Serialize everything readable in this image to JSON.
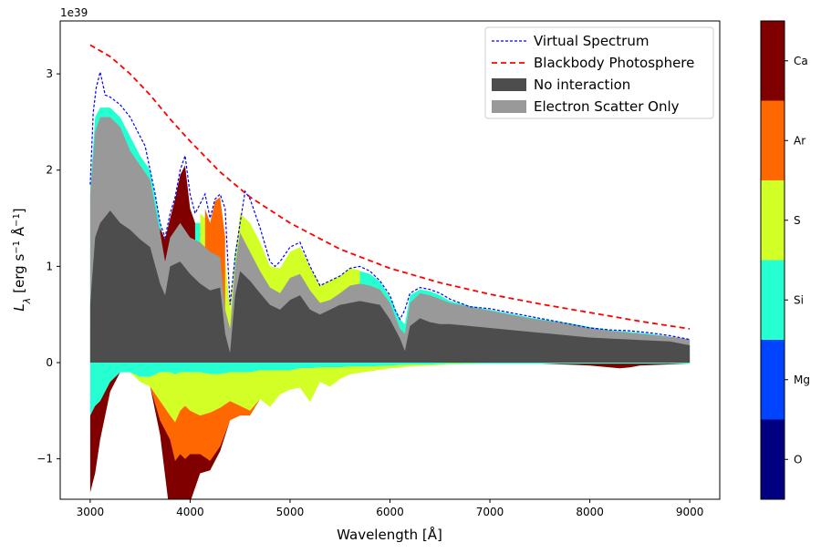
{
  "chart_data": {
    "type": "area",
    "xlabel": "Wavelength [Å]",
    "ylabel_main": "L",
    "ylabel_sub": "λ",
    "ylabel_units": "[erg s",
    "ylabel_units2": " Å",
    "ylabel_close": "]",
    "ylabel_exp": "−1",
    "y_multiplier": "1e39",
    "xlim": [
      2700,
      9300
    ],
    "ylim": [
      -1.42,
      3.55
    ],
    "xticks": [
      3000,
      4000,
      5000,
      6000,
      7000,
      8000,
      9000
    ],
    "yticks": [
      -1,
      0,
      1,
      2,
      3
    ],
    "ytick_labels": [
      "−1",
      "0",
      "1",
      "2",
      "3"
    ],
    "legend": [
      {
        "label": "Virtual Spectrum",
        "style": "dashed-line",
        "color": "#0000ff"
      },
      {
        "label": "Blackbody Photosphere",
        "style": "dashed-line",
        "color": "#ff0000"
      },
      {
        "label": "No interaction",
        "style": "patch",
        "color": "#4d4d4d"
      },
      {
        "label": "Electron Scatter Only",
        "style": "patch",
        "color": "#999999"
      }
    ],
    "legend_position": "top-right",
    "blackbody": {
      "x": [
        3000,
        3200,
        3400,
        3600,
        3800,
        4000,
        4300,
        4600,
        5000,
        5500,
        6000,
        6500,
        7000,
        7500,
        8000,
        8500,
        9000
      ],
      "y": [
        3.3,
        3.18,
        3.0,
        2.78,
        2.53,
        2.3,
        1.98,
        1.72,
        1.45,
        1.18,
        0.98,
        0.83,
        0.71,
        0.61,
        0.52,
        0.43,
        0.35
      ]
    },
    "virtual_spectrum": {
      "x": [
        3000,
        3030,
        3060,
        3100,
        3150,
        3200,
        3300,
        3400,
        3450,
        3500,
        3550,
        3600,
        3650,
        3700,
        3750,
        3800,
        3850,
        3900,
        3950,
        4000,
        4050,
        4100,
        4150,
        4200,
        4250,
        4300,
        4350,
        4400,
        4450,
        4500,
        4550,
        4600,
        4700,
        4800,
        4850,
        4900,
        5000,
        5100,
        5200,
        5300,
        5400,
        5500,
        5600,
        5700,
        5800,
        5900,
        6000,
        6050,
        6100,
        6150,
        6200,
        6300,
        6400,
        6500,
        6600,
        6700,
        6800,
        7000,
        7200,
        7400,
        7600,
        7800,
        8000,
        8200,
        8400,
        8600,
        8800,
        9000
      ],
      "y": [
        1.85,
        2.6,
        2.85,
        3.02,
        2.78,
        2.76,
        2.68,
        2.55,
        2.45,
        2.35,
        2.25,
        2.0,
        1.75,
        1.45,
        1.3,
        1.55,
        1.72,
        2.0,
        2.15,
        1.75,
        1.55,
        1.65,
        1.75,
        1.5,
        1.7,
        1.75,
        1.6,
        0.6,
        1.1,
        1.45,
        1.78,
        1.7,
        1.4,
        1.05,
        1.0,
        1.05,
        1.2,
        1.25,
        1.0,
        0.8,
        0.85,
        0.9,
        0.98,
        1.0,
        0.95,
        0.85,
        0.7,
        0.55,
        0.45,
        0.55,
        0.72,
        0.78,
        0.76,
        0.72,
        0.66,
        0.62,
        0.58,
        0.56,
        0.52,
        0.48,
        0.44,
        0.4,
        0.36,
        0.34,
        0.33,
        0.31,
        0.28,
        0.24
      ]
    },
    "components": [
      {
        "name": "No interaction",
        "color": "#4d4d4d",
        "x": [
          3000,
          3050,
          3100,
          3200,
          3300,
          3400,
          3500,
          3600,
          3700,
          3750,
          3800,
          3900,
          4000,
          4100,
          4200,
          4300,
          4350,
          4400,
          4450,
          4500,
          4600,
          4700,
          4800,
          4900,
          5000,
          5100,
          5200,
          5300,
          5400,
          5500,
          5600,
          5700,
          5800,
          5900,
          6000,
          6100,
          6150,
          6200,
          6300,
          6400,
          6500,
          6600,
          6800,
          7000,
          7200,
          7400,
          7600,
          7800,
          8000,
          8200,
          8400,
          8600,
          8800,
          9000
        ],
        "y": [
          0.6,
          1.3,
          1.45,
          1.58,
          1.45,
          1.38,
          1.28,
          1.2,
          0.82,
          0.7,
          1.0,
          1.05,
          0.92,
          0.82,
          0.75,
          0.78,
          0.3,
          0.1,
          0.7,
          0.95,
          0.85,
          0.72,
          0.6,
          0.55,
          0.65,
          0.7,
          0.55,
          0.5,
          0.55,
          0.6,
          0.62,
          0.64,
          0.62,
          0.6,
          0.45,
          0.25,
          0.12,
          0.38,
          0.46,
          0.42,
          0.4,
          0.4,
          0.38,
          0.36,
          0.34,
          0.32,
          0.3,
          0.28,
          0.26,
          0.25,
          0.24,
          0.23,
          0.22,
          0.18
        ]
      },
      {
        "name": "Electron Scatter Only",
        "color": "#999999",
        "x": [
          3000,
          3050,
          3100,
          3200,
          3300,
          3400,
          3500,
          3600,
          3700,
          3750,
          3800,
          3900,
          4000,
          4100,
          4200,
          4300,
          4350,
          4400,
          4450,
          4500,
          4600,
          4700,
          4800,
          4900,
          5000,
          5100,
          5200,
          5300,
          5400,
          5500,
          5600,
          5700,
          5800,
          5900,
          6000,
          6100,
          6150,
          6200,
          6300,
          6400,
          6500,
          6600,
          6800,
          7000,
          7200,
          7400,
          7600,
          7800,
          8000,
          8200,
          8400,
          8600,
          8800,
          9000
        ],
        "y": [
          1.75,
          2.4,
          2.55,
          2.55,
          2.45,
          2.2,
          2.05,
          1.9,
          1.35,
          1.05,
          1.3,
          1.45,
          1.3,
          1.25,
          1.15,
          1.1,
          0.55,
          0.35,
          1.0,
          1.35,
          1.15,
          0.95,
          0.78,
          0.72,
          0.88,
          0.92,
          0.75,
          0.62,
          0.65,
          0.72,
          0.8,
          0.82,
          0.8,
          0.76,
          0.62,
          0.35,
          0.3,
          0.62,
          0.72,
          0.7,
          0.66,
          0.62,
          0.58,
          0.54,
          0.5,
          0.46,
          0.43,
          0.4,
          0.36,
          0.33,
          0.31,
          0.29,
          0.27,
          0.24
        ]
      },
      {
        "name": "Si",
        "color": "#26ffd1",
        "x": [
          3000,
          3050,
          3100,
          3200,
          3300,
          3400,
          3500,
          3600,
          3700,
          3750,
          3800,
          3900,
          4000,
          4100,
          4200,
          4300,
          4350,
          4400,
          4450,
          4500,
          4600,
          4700,
          4800,
          4900,
          5000,
          5100,
          5200,
          5300,
          5400,
          5500,
          5600,
          5700,
          5800,
          5900,
          6000,
          6100,
          6150,
          6200,
          6300,
          6400,
          6500,
          6600,
          6800,
          7000,
          7200,
          7400,
          7600,
          7800,
          8000,
          8200,
          8400,
          8600,
          8800,
          9000
        ],
        "y": [
          1.8,
          2.55,
          2.65,
          2.65,
          2.55,
          2.35,
          2.15,
          2.0,
          1.45,
          1.15,
          1.4,
          1.6,
          1.45,
          1.45,
          1.3,
          1.3,
          0.7,
          0.5,
          1.15,
          1.45,
          1.3,
          1.1,
          0.95,
          0.9,
          1.05,
          1.1,
          0.92,
          0.72,
          0.7,
          0.76,
          0.92,
          0.95,
          0.92,
          0.84,
          0.68,
          0.45,
          0.4,
          0.7,
          0.76,
          0.74,
          0.7,
          0.64,
          0.59,
          0.55,
          0.51,
          0.47,
          0.44,
          0.41,
          0.37,
          0.34,
          0.32,
          0.3,
          0.27,
          0.24
        ]
      },
      {
        "name": "S",
        "color": "#d1ff26",
        "x": [
          4100,
          4200,
          4300,
          4400,
          4500,
          4600,
          4700,
          4800,
          4900,
          5000,
          5100,
          5200,
          5300,
          5400,
          5500,
          5600,
          5700
        ],
        "y": [
          1.55,
          1.45,
          1.6,
          0.55,
          1.55,
          1.45,
          1.25,
          1.0,
          0.98,
          1.15,
          1.2,
          1.0,
          0.8,
          0.85,
          0.9,
          0.98,
          0.96
        ]
      },
      {
        "name": "Ar",
        "color": "#ff6800",
        "x": [
          4150,
          4200,
          4250,
          4300,
          4350
        ],
        "y": [
          1.6,
          1.45,
          1.68,
          1.72,
          1.3
        ]
      },
      {
        "name": "Ca",
        "color": "#800000",
        "x": [
          3700,
          3750,
          3800,
          3850,
          3900,
          3950,
          4000,
          4050
        ],
        "y": [
          1.4,
          1.28,
          1.5,
          1.7,
          1.95,
          2.05,
          1.6,
          1.45
        ]
      }
    ],
    "negative": {
      "x": [
        3000,
        3050,
        3100,
        3200,
        3300,
        3400,
        3500,
        3600,
        3700,
        3800,
        3850,
        3900,
        3950,
        4000,
        4100,
        4200,
        4300,
        4400,
        4500,
        4600,
        4700,
        4800,
        4900,
        5000,
        5100,
        5200,
        5300,
        5400,
        5500,
        5600,
        5800,
        6000,
        6200,
        6400,
        6600,
        7000,
        7500,
        8000,
        8200,
        8300,
        8400,
        8500,
        9000
      ],
      "si": [
        -0.55,
        -0.45,
        -0.4,
        -0.2,
        -0.1,
        -0.1,
        -0.15,
        -0.15,
        -0.1,
        -0.1,
        -0.12,
        -0.1,
        -0.1,
        -0.1,
        -0.1,
        -0.12,
        -0.12,
        -0.1,
        -0.1,
        -0.1,
        -0.08,
        -0.08,
        -0.08,
        -0.08,
        -0.06,
        -0.06,
        -0.05,
        -0.05,
        -0.05,
        -0.04,
        -0.04,
        -0.03,
        -0.02,
        -0.02,
        -0.01,
        -0.01,
        -0.01,
        -0.01,
        -0.01,
        -0.01,
        -0.01,
        -0.01,
        -0.01
      ],
      "s": [
        0,
        0,
        0,
        0,
        0,
        0,
        -0.05,
        -0.1,
        -0.3,
        -0.45,
        -0.5,
        -0.4,
        -0.35,
        -0.4,
        -0.45,
        -0.4,
        -0.35,
        -0.3,
        -0.35,
        -0.4,
        -0.3,
        -0.38,
        -0.25,
        -0.2,
        -0.2,
        -0.35,
        -0.15,
        -0.2,
        -0.12,
        -0.08,
        -0.05,
        -0.03,
        -0.02,
        -0.01,
        -0.01,
        0,
        0,
        0,
        0,
        0,
        0,
        0,
        0
      ],
      "ar": [
        0,
        0,
        0,
        0,
        0,
        0,
        0,
        0,
        -0.2,
        -0.25,
        -0.4,
        -0.45,
        -0.55,
        -0.45,
        -0.4,
        -0.5,
        -0.4,
        -0.2,
        -0.1,
        -0.05,
        0,
        0,
        0,
        0,
        0,
        0,
        0,
        0,
        0,
        0,
        0,
        0,
        0,
        0,
        0,
        0,
        0,
        0,
        0,
        0,
        0,
        0,
        0
      ],
      "ca": [
        -0.8,
        -0.7,
        -0.4,
        -0.1,
        0,
        0,
        0,
        0,
        -0.15,
        -0.8,
        -1.05,
        -1.15,
        -0.85,
        -0.5,
        -0.2,
        -0.1,
        -0.05,
        0,
        0,
        0,
        0,
        0,
        0,
        0,
        0,
        0,
        0,
        0,
        0,
        0,
        0,
        0,
        0,
        0,
        0,
        0,
        0,
        -0.02,
        -0.04,
        -0.05,
        -0.04,
        -0.02,
        0
      ],
      "colors": {
        "si": "#26ffd1",
        "s": "#d1ff26",
        "ar": "#ff6800",
        "ca": "#800000"
      }
    },
    "colorbar": {
      "labels": [
        "O",
        "Mg",
        "Si",
        "S",
        "Ar",
        "Ca"
      ],
      "colors": [
        "#000080",
        "#0044ff",
        "#26ffd1",
        "#d1ff26",
        "#ff6800",
        "#800000"
      ]
    }
  }
}
